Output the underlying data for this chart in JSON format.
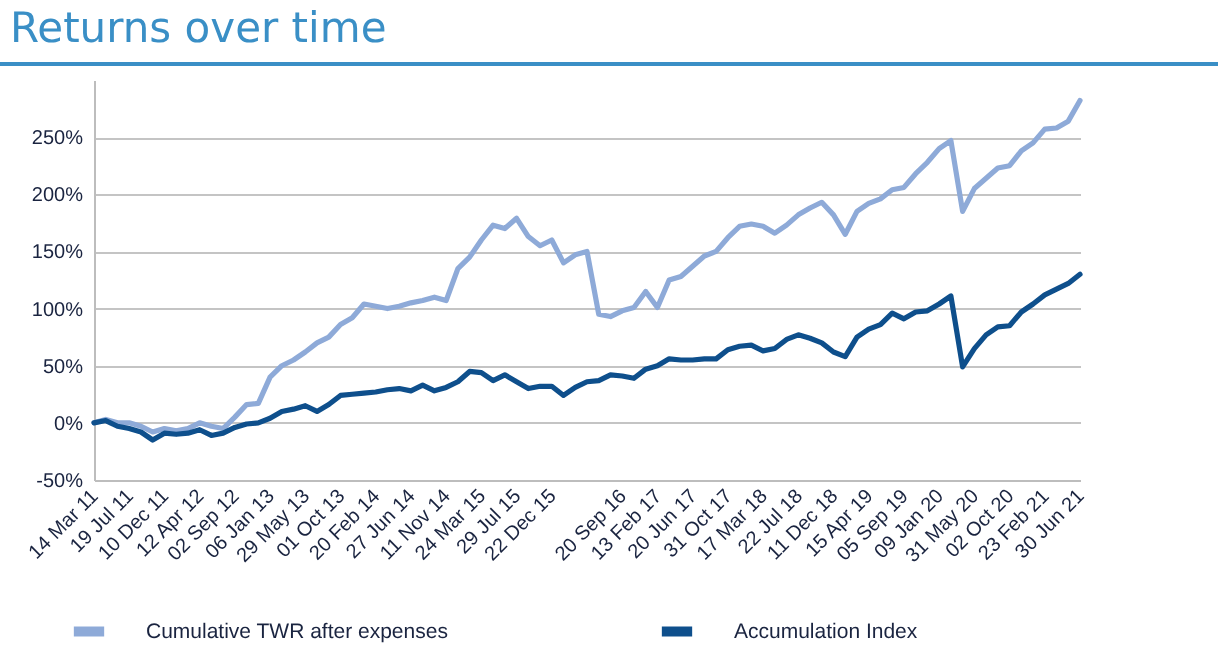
{
  "chart_data": {
    "type": "line",
    "title": "Returns over time",
    "categories": [
      "14 Mar 11",
      null,
      null,
      "19 Jul 11",
      null,
      null,
      "10 Dec 11",
      null,
      null,
      "12 Apr 12",
      null,
      null,
      "02 Sep 12",
      null,
      null,
      "06 Jan 13",
      null,
      null,
      "29 May 13",
      null,
      null,
      "01 Oct 13",
      null,
      null,
      "20 Feb 14",
      null,
      null,
      "27 Jun 14",
      null,
      null,
      "11 Nov 14",
      null,
      null,
      "24 Mar 15",
      null,
      null,
      "29 Jul 15",
      null,
      null,
      "22 Dec 15",
      null,
      null,
      null,
      null,
      null,
      "20 Sep 16",
      null,
      null,
      "13 Feb 17",
      null,
      null,
      "20 Jun 17",
      null,
      null,
      "31 Oct 17",
      null,
      null,
      "17 Mar 18",
      null,
      null,
      "22 Jul 18",
      null,
      null,
      "11 Dec 18",
      null,
      null,
      "15 Apr 19",
      null,
      null,
      "05 Sep 19",
      null,
      null,
      "09 Jan 20",
      null,
      null,
      "31 May 20",
      null,
      null,
      "02 Oct 20",
      null,
      null,
      "23 Feb 21",
      null,
      null,
      "30 Jun 21"
    ],
    "series": [
      {
        "name": "Cumulative TWR after expenses",
        "color": "#8eaad8",
        "values": [
          0,
          3,
          0,
          0,
          -3,
          -8,
          -5,
          -7,
          -5,
          0,
          -3,
          -5,
          5,
          16,
          17,
          40,
          50,
          55,
          62,
          70,
          75,
          86,
          92,
          104,
          102,
          100,
          102,
          105,
          107,
          110,
          107,
          135,
          145,
          160,
          173,
          170,
          179,
          163,
          155,
          160,
          140,
          147,
          150,
          95,
          93,
          98,
          101,
          115,
          101,
          125,
          128,
          137,
          146,
          150,
          162,
          172,
          174,
          172,
          166,
          173,
          182,
          188,
          193,
          182,
          165,
          185,
          192,
          196,
          204,
          206,
          218,
          228,
          240,
          247,
          185,
          205,
          214,
          223,
          225,
          238,
          245,
          257,
          258,
          264,
          282
        ]
      },
      {
        "name": "Accumulation Index",
        "color": "#0e4f8c",
        "values": [
          0,
          2,
          -3,
          -5,
          -8,
          -15,
          -9,
          -10,
          -9,
          -6,
          -11,
          -9,
          -4,
          -1,
          0,
          4,
          10,
          12,
          15,
          10,
          16,
          24,
          25,
          26,
          27,
          29,
          30,
          28,
          33,
          28,
          31,
          36,
          45,
          44,
          37,
          42,
          36,
          30,
          32,
          32,
          24,
          31,
          36,
          37,
          42,
          41,
          39,
          47,
          50,
          56,
          55,
          55,
          56,
          56,
          64,
          67,
          68,
          63,
          65,
          73,
          77,
          74,
          70,
          62,
          58,
          75,
          82,
          86,
          96,
          91,
          97,
          98,
          104,
          111,
          49,
          65,
          77,
          84,
          85,
          97,
          104,
          112,
          117,
          122,
          130
        ]
      }
    ],
    "ylim": [
      -50,
      300
    ],
    "yticks": [
      {
        "value": -50,
        "label": "-50%"
      },
      {
        "value": 0,
        "label": "0%"
      },
      {
        "value": 50,
        "label": "50%"
      },
      {
        "value": 100,
        "label": "100%"
      },
      {
        "value": 150,
        "label": "150%"
      },
      {
        "value": 200,
        "label": "200%"
      },
      {
        "value": 250,
        "label": "250%"
      }
    ],
    "grid": "y",
    "legend": "bottom"
  }
}
